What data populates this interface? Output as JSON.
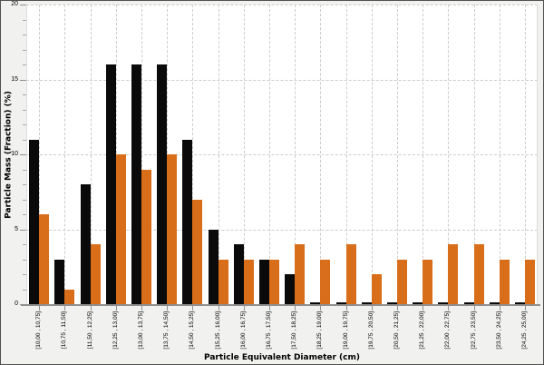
{
  "style": {
    "bar_black": "#0a0a0a",
    "bar_orange": "#d96e1a",
    "grid_color": "#cccccc",
    "axis_color": "#8f8f8f",
    "plot_background": "#ffffff",
    "chart_background": "#f1f1ef",
    "border_color": "#515151",
    "text_color": "#000000"
  },
  "chart_data": {
    "type": "bar",
    "title": "",
    "xlabel": "Particle Equivalent Diameter (cm)",
    "ylabel": "Particle Mass (Fraction) (%)",
    "ylim": [
      0,
      20
    ],
    "yticks": [
      0,
      5,
      10,
      15,
      20
    ],
    "y_minor_tick_step": 1,
    "grid": true,
    "legend_position": "none",
    "categories": [
      "[10,00 , 10,75]",
      "[10,75 , 11,50]",
      "[11,50 , 12,25]",
      "[12,25 , 13,00]",
      "[13,00 , 13,75]",
      "[13,75 , 14,50]",
      "[14,50 , 15,25]",
      "[15,25 , 16,00]",
      "[16,00 , 16,75]",
      "[16,75 , 17,50]",
      "[17,50 , 18,25]",
      "[18,25 , 19,00]",
      "[19,00 , 19,75]",
      "[19,75 , 20,50]",
      "[20,50 , 21,25]",
      "[21,25 , 22,00]",
      "[22,00 , 22,75]",
      "[22,75 , 23,50]",
      "[23,50 , 24,25]",
      "[24,25 , 25,00]"
    ],
    "series": [
      {
        "name": "black",
        "color": "#0a0a0a",
        "values": [
          11,
          3,
          8,
          16,
          16,
          16,
          11,
          5,
          4,
          3,
          2,
          0.1,
          0.1,
          0.1,
          0.1,
          0.1,
          0.1,
          0.1,
          0.1,
          0.1
        ]
      },
      {
        "name": "orange",
        "color": "#d96e1a",
        "values": [
          6,
          1,
          4,
          10,
          9,
          10,
          7,
          3,
          3,
          3,
          4,
          3,
          4,
          2,
          3,
          3,
          4,
          4,
          3,
          3
        ]
      }
    ]
  }
}
